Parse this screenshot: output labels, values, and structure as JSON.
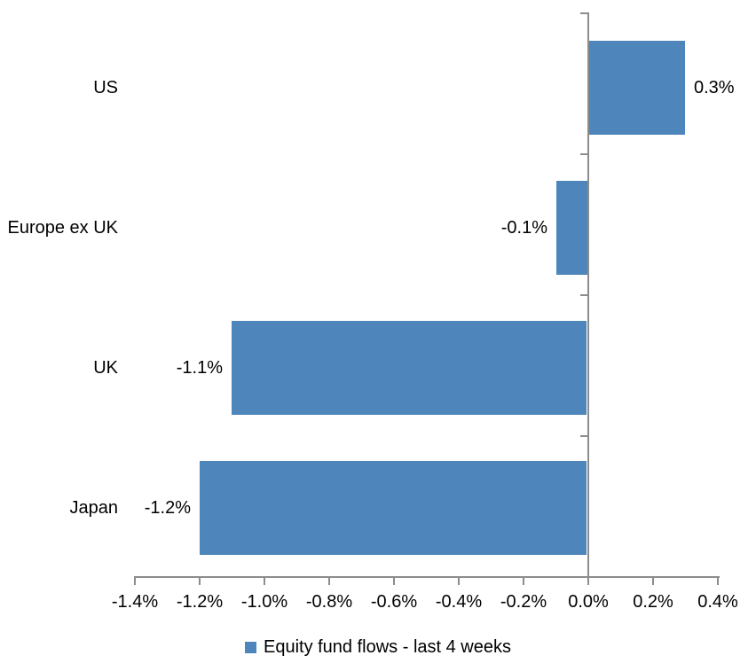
{
  "colors": {
    "bar": "#4E86BB",
    "axis_line": "#8C8C8C",
    "text": "#000000",
    "background": "#FFFFFF"
  },
  "chart_data": {
    "type": "bar",
    "orientation": "horizontal",
    "title": "",
    "categories": [
      "US",
      "Europe ex UK",
      "UK",
      "Japan"
    ],
    "values": [
      0.3,
      -0.1,
      -1.1,
      -1.2
    ],
    "data_labels": [
      "0.3%",
      "-0.1%",
      "-1.1%",
      "-1.2%"
    ],
    "x_axis": {
      "tick_labels": [
        "-1.4%",
        "-1.2%",
        "-1.0%",
        "-0.8%",
        "-0.6%",
        "-0.4%",
        "-0.2%",
        "0.0%",
        "0.2%",
        "0.4%"
      ],
      "tick_values": [
        -1.4,
        -1.2,
        -1.0,
        -0.8,
        -0.6,
        -0.4,
        -0.2,
        0.0,
        0.2,
        0.4
      ],
      "min": -1.4,
      "max": 0.4,
      "unit": "%"
    },
    "grid": false,
    "legend": {
      "position": "bottom",
      "label": "Equity fund flows - last 4 weeks"
    }
  }
}
